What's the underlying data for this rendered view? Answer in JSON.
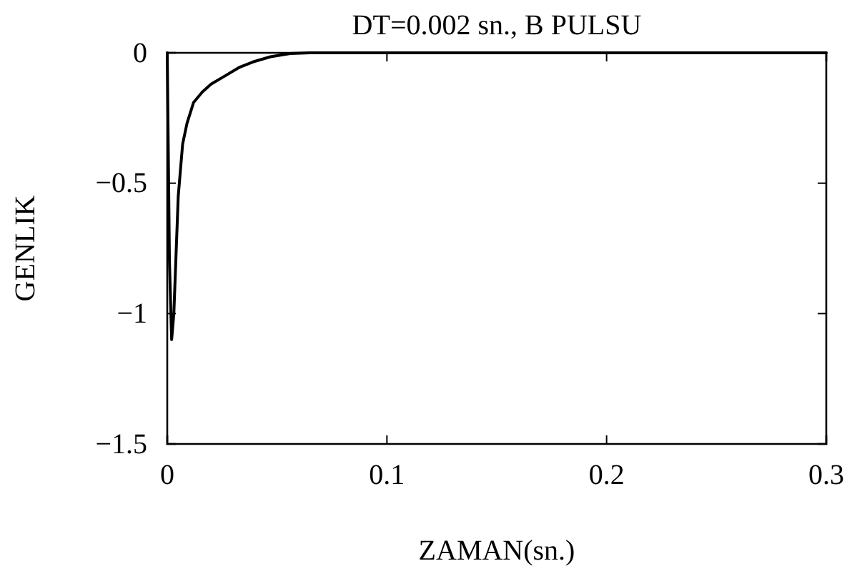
{
  "chart_data": {
    "type": "line",
    "title": "DT=0.002 sn., B PULSU",
    "xlabel": "ZAMAN(sn.)",
    "ylabel": "GENLIK",
    "x": [
      0,
      0.001,
      0.002,
      0.003,
      0.005,
      0.007,
      0.009,
      0.012,
      0.016,
      0.02,
      0.026,
      0.033,
      0.039,
      0.047,
      0.056,
      0.065,
      0.3
    ],
    "series": [
      {
        "color": "#000000",
        "values": [
          0,
          -0.8,
          -1.1,
          -1.0,
          -0.55,
          -0.35,
          -0.27,
          -0.19,
          -0.15,
          -0.12,
          -0.09,
          -0.055,
          -0.035,
          -0.015,
          -0.003,
          0,
          0
        ]
      }
    ],
    "xlim": [
      0,
      0.3
    ],
    "xticks": [
      0,
      0.1,
      0.2,
      0.3
    ],
    "ylim": [
      -1.5,
      0
    ],
    "yticks": [
      -1.5,
      -1,
      -0.5,
      0
    ],
    "grid": false,
    "marker": "none",
    "line_style": "solid"
  }
}
